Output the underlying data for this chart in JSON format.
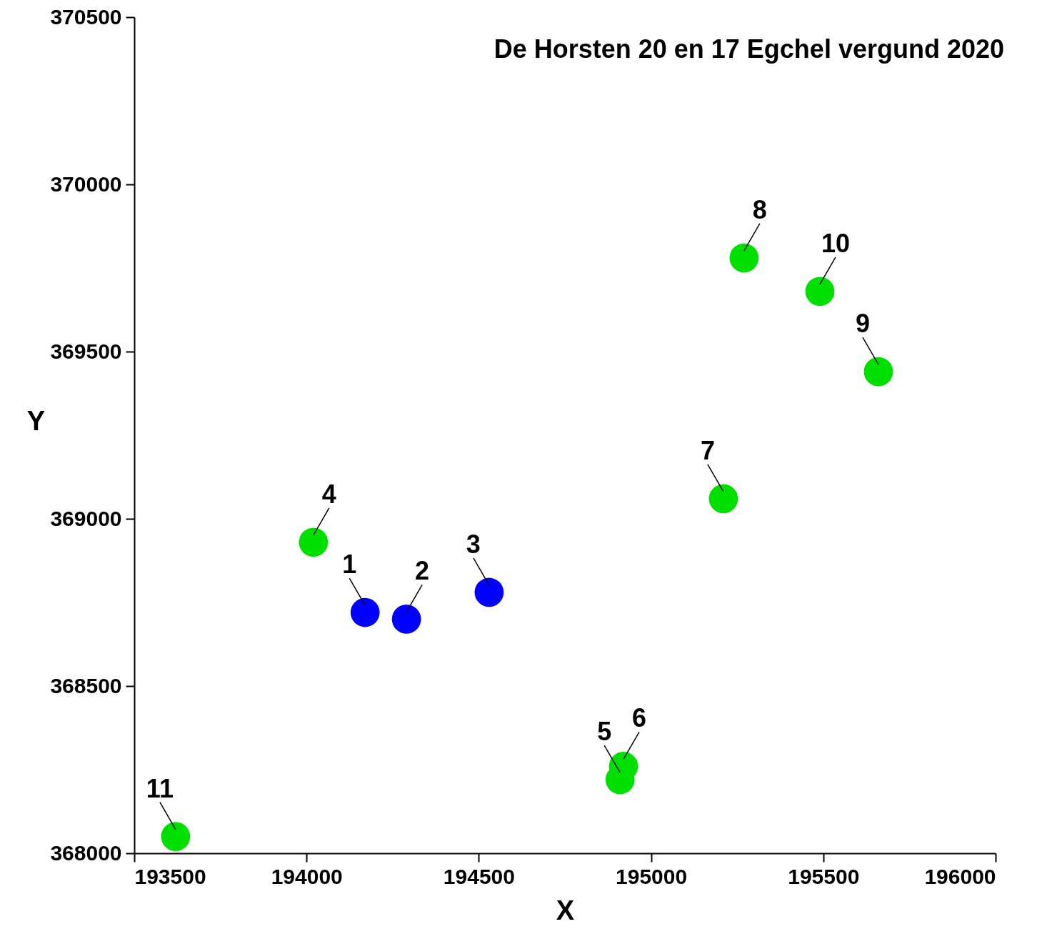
{
  "chart_data": {
    "type": "scatter",
    "title": "De Horsten 20 en 17 Egchel vergund 2020",
    "xlabel": "X",
    "ylabel": "Y",
    "series": [
      {
        "color": "#0000ff",
        "x": [
          194170,
          194290,
          194530
        ],
        "values": [
          368720,
          368700,
          368780
        ]
      },
      {
        "color": "#00e000",
        "x": [
          194020,
          194910,
          194920,
          195210,
          195270,
          195660,
          195490,
          193620
        ],
        "values": [
          368930,
          368220,
          368260,
          369060,
          369780,
          369440,
          369680,
          368050
        ]
      }
    ],
    "annotations": [
      {
        "text": "1",
        "x": 194170,
        "y": 368720
      },
      {
        "text": "2",
        "x": 194290,
        "y": 368700
      },
      {
        "text": "3",
        "x": 194530,
        "y": 368780
      },
      {
        "text": "4",
        "x": 194020,
        "y": 368930
      },
      {
        "text": "5",
        "x": 194910,
        "y": 368220
      },
      {
        "text": "6",
        "x": 194920,
        "y": 368260
      },
      {
        "text": "7",
        "x": 195210,
        "y": 369060
      },
      {
        "text": "8",
        "x": 195270,
        "y": 369780
      },
      {
        "text": "9",
        "x": 195660,
        "y": 369440
      },
      {
        "text": "10",
        "x": 195490,
        "y": 369680
      },
      {
        "text": "11",
        "x": 193620,
        "y": 368050
      }
    ],
    "xlim": [
      193500,
      196000
    ],
    "xticks": [
      193500,
      194000,
      194500,
      195000,
      195500,
      196000
    ],
    "ylim": [
      368000,
      370500
    ],
    "yticks": [
      368000,
      368500,
      369000,
      369500,
      370000,
      370500
    ],
    "grid": false,
    "marker": "circle"
  }
}
